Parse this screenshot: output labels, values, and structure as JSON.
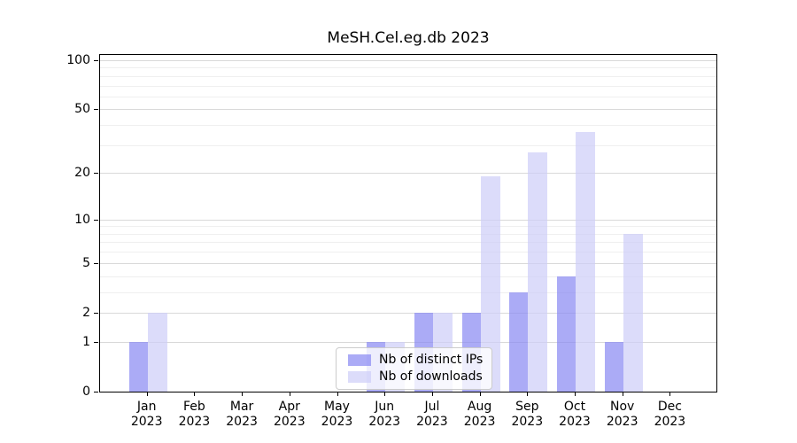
{
  "title": "MeSH.Cel.eg.db 2023",
  "colors": {
    "ips_bar": "rgba(135,135,242,0.70)",
    "downloads_bar": "rgba(205,205,248,0.70)",
    "grid_major": "#d9d9d9",
    "grid_minor": "#efefef",
    "axis": "#000000",
    "legend_border": "#cccccc"
  },
  "y_axis": {
    "tick_labels": [
      "100",
      "50",
      "20",
      "10",
      "5",
      "2",
      "1",
      "0"
    ],
    "major_ticks": [
      100,
      50,
      20,
      10,
      5,
      2,
      1,
      0
    ],
    "minor_gridlines": [
      3,
      4,
      6,
      7,
      8,
      9,
      30,
      40,
      60,
      70,
      80,
      90
    ]
  },
  "x_axis": {
    "months": [
      "Jan",
      "Feb",
      "Mar",
      "Apr",
      "May",
      "Jun",
      "Jul",
      "Aug",
      "Sep",
      "Oct",
      "Nov",
      "Dec"
    ],
    "year": "2023"
  },
  "legend": {
    "items": [
      {
        "label": "Nb of distinct IPs",
        "series": "ips"
      },
      {
        "label": "Nb of downloads",
        "series": "downloads"
      }
    ]
  },
  "chart_data": {
    "type": "bar",
    "title": "MeSH.Cel.eg.db 2023",
    "categories": [
      "Jan 2023",
      "Feb 2023",
      "Mar 2023",
      "Apr 2023",
      "May 2023",
      "Jun 2023",
      "Jul 2023",
      "Aug 2023",
      "Sep 2023",
      "Oct 2023",
      "Nov 2023",
      "Dec 2023"
    ],
    "series": [
      {
        "name": "Nb of distinct IPs",
        "values": [
          1,
          0,
          0,
          0,
          0,
          1,
          2,
          2,
          3,
          4,
          1,
          0
        ]
      },
      {
        "name": "Nb of downloads",
        "values": [
          2,
          0,
          0,
          0,
          0,
          1,
          2,
          19,
          27,
          36,
          8,
          0
        ]
      }
    ],
    "ylabel": "",
    "xlabel": "",
    "y_scale": "log10(1+x)",
    "y_ticks": [
      0,
      1,
      2,
      5,
      10,
      20,
      50,
      100
    ],
    "ylim": [
      0,
      110
    ],
    "grid": true,
    "legend_position": "lower center"
  }
}
